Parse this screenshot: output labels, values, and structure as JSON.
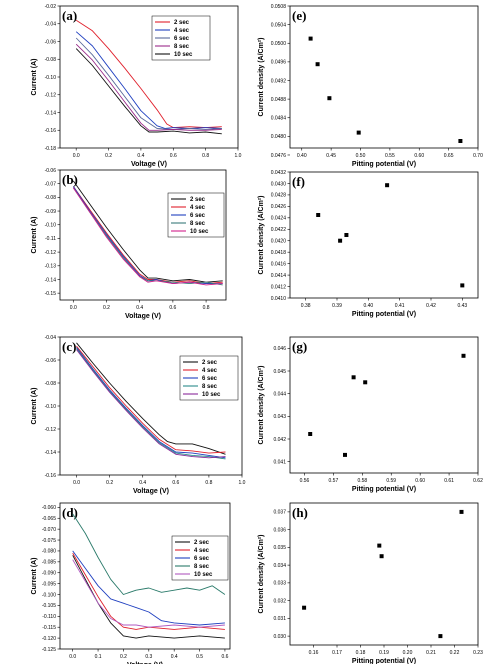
{
  "chart_data": [
    {
      "id": "a",
      "type": "line",
      "panel_label": "(a)",
      "xlabel": "Voltage (V)",
      "ylabel": "Current (A)",
      "xlim": [
        -0.1,
        1.0
      ],
      "ylim": [
        -0.18,
        -0.02
      ],
      "xticks": [
        "0.0",
        "0.2",
        "0.4",
        "0.6",
        "0.8",
        "1.0"
      ],
      "yticks": [
        "-0.02",
        "-0.04",
        "-0.06",
        "-0.08",
        "-0.10",
        "-0.12",
        "-0.14",
        "-0.16",
        "-0.18"
      ],
      "legend": "top-right",
      "series": [
        {
          "name": "2 sec",
          "color": "#e0202c",
          "x": [
            0,
            0.1,
            0.2,
            0.3,
            0.4,
            0.5,
            0.56,
            0.6,
            0.7,
            0.8,
            0.9
          ],
          "y": [
            -0.036,
            -0.048,
            -0.068,
            -0.09,
            -0.113,
            -0.137,
            -0.153,
            -0.157,
            -0.156,
            -0.157,
            -0.156
          ]
        },
        {
          "name": "4 sec",
          "color": "#2040c0",
          "x": [
            0,
            0.1,
            0.2,
            0.3,
            0.4,
            0.5,
            0.55,
            0.6,
            0.7,
            0.8,
            0.9
          ],
          "y": [
            -0.049,
            -0.065,
            -0.089,
            -0.113,
            -0.138,
            -0.155,
            -0.158,
            -0.157,
            -0.158,
            -0.157,
            -0.158
          ]
        },
        {
          "name": "6 sec",
          "color": "#5a6a9a",
          "x": [
            0,
            0.1,
            0.2,
            0.3,
            0.4,
            0.5,
            0.6,
            0.7,
            0.8,
            0.9
          ],
          "y": [
            -0.056,
            -0.075,
            -0.098,
            -0.122,
            -0.146,
            -0.158,
            -0.159,
            -0.158,
            -0.159,
            -0.158
          ]
        },
        {
          "name": "8 sec",
          "color": "#9a2a8a",
          "x": [
            0,
            0.1,
            0.2,
            0.3,
            0.4,
            0.45,
            0.5,
            0.6,
            0.7,
            0.8,
            0.9
          ],
          "y": [
            -0.063,
            -0.081,
            -0.104,
            -0.128,
            -0.152,
            -0.16,
            -0.16,
            -0.159,
            -0.16,
            -0.16,
            -0.159
          ]
        },
        {
          "name": "10 sec",
          "color": "#111111",
          "x": [
            0,
            0.1,
            0.2,
            0.3,
            0.4,
            0.45,
            0.5,
            0.6,
            0.7,
            0.8,
            0.9
          ],
          "y": [
            -0.068,
            -0.087,
            -0.11,
            -0.133,
            -0.155,
            -0.162,
            -0.162,
            -0.161,
            -0.163,
            -0.162,
            -0.164
          ]
        }
      ]
    },
    {
      "id": "e",
      "type": "scatter",
      "panel_label": "(e)",
      "xlabel": "Pitting potential (V)",
      "ylabel": "Current density (A/Cm²)",
      "xlim": [
        0.38,
        0.7
      ],
      "ylim": [
        0.04775,
        0.0508
      ],
      "xticks": [
        "0.40",
        "0.45",
        "0.50",
        "0.55",
        "0.60",
        "0.65",
        "0.70"
      ],
      "yticks": [
        "0.0508",
        "0.0504",
        "0.0500",
        "0.0496",
        "0.0492",
        "0.0488",
        "0.0484",
        "0.0480",
        "0.0476"
      ],
      "series": [
        {
          "x": [
            0.415,
            0.427,
            0.447,
            0.497,
            0.67
          ],
          "y": [
            0.0501,
            0.04955,
            0.04882,
            0.04808,
            0.0479
          ]
        }
      ]
    },
    {
      "id": "b",
      "type": "line",
      "panel_label": "(b)",
      "xlabel": "Voltage (V)",
      "ylabel": "Current (A)",
      "xlim": [
        -0.08,
        0.92
      ],
      "ylim": [
        -0.155,
        -0.06
      ],
      "xticks": [
        "0.0",
        "0.2",
        "0.4",
        "0.6",
        "0.8"
      ],
      "yticks": [
        "-0.06",
        "-0.07",
        "-0.08",
        "-0.09",
        "-0.10",
        "-0.11",
        "-0.12",
        "-0.13",
        "-0.14",
        "-0.15"
      ],
      "legend": "right",
      "series": [
        {
          "name": "2 sec",
          "color": "#111111",
          "x": [
            0,
            0.1,
            0.2,
            0.3,
            0.4,
            0.45,
            0.5,
            0.6,
            0.7,
            0.8,
            0.9
          ],
          "y": [
            -0.068,
            -0.085,
            -0.102,
            -0.118,
            -0.133,
            -0.139,
            -0.139,
            -0.141,
            -0.14,
            -0.142,
            -0.141
          ]
        },
        {
          "name": "4 sec",
          "color": "#e0202c",
          "x": [
            0,
            0.1,
            0.2,
            0.3,
            0.4,
            0.45,
            0.5,
            0.6,
            0.7,
            0.8,
            0.9
          ],
          "y": [
            -0.072,
            -0.089,
            -0.106,
            -0.122,
            -0.136,
            -0.14,
            -0.14,
            -0.142,
            -0.141,
            -0.143,
            -0.142
          ]
        },
        {
          "name": "6 sec",
          "color": "#2040c0",
          "x": [
            0,
            0.1,
            0.2,
            0.3,
            0.4,
            0.45,
            0.5,
            0.6,
            0.7,
            0.8,
            0.9
          ],
          "y": [
            -0.072,
            -0.09,
            -0.107,
            -0.123,
            -0.137,
            -0.141,
            -0.14,
            -0.143,
            -0.142,
            -0.143,
            -0.143
          ]
        },
        {
          "name": "8 sec",
          "color": "#3a7a7a",
          "x": [
            0,
            0.1,
            0.2,
            0.3,
            0.4,
            0.45,
            0.5,
            0.6,
            0.7,
            0.8,
            0.9
          ],
          "y": [
            -0.073,
            -0.091,
            -0.108,
            -0.124,
            -0.138,
            -0.141,
            -0.141,
            -0.142,
            -0.143,
            -0.142,
            -0.144
          ]
        },
        {
          "name": "10 sec",
          "color": "#d0208a",
          "x": [
            0,
            0.1,
            0.2,
            0.3,
            0.4,
            0.45,
            0.5,
            0.6,
            0.7,
            0.8,
            0.9
          ],
          "y": [
            -0.073,
            -0.091,
            -0.109,
            -0.125,
            -0.138,
            -0.142,
            -0.141,
            -0.143,
            -0.142,
            -0.144,
            -0.143
          ]
        }
      ]
    },
    {
      "id": "f",
      "type": "scatter",
      "panel_label": "(f)",
      "xlabel": "Pitting potential (V)",
      "ylabel": "Current density (A/Cm²)",
      "xlim": [
        0.375,
        0.435
      ],
      "ylim": [
        0.041,
        0.0432
      ],
      "xticks": [
        "0.38",
        "0.39",
        "0.40",
        "0.41",
        "0.42",
        "0.43"
      ],
      "yticks": [
        "0.0432",
        "0.0430",
        "0.0428",
        "0.0426",
        "0.0424",
        "0.0422",
        "0.0420",
        "0.0418",
        "0.0416",
        "0.0414",
        "0.0412",
        "0.0410"
      ],
      "series": [
        {
          "x": [
            0.384,
            0.391,
            0.393,
            0.406,
            0.43
          ],
          "y": [
            0.04245,
            0.042,
            0.0421,
            0.04297,
            0.04122
          ]
        }
      ]
    },
    {
      "id": "c",
      "type": "line",
      "panel_label": "(c)",
      "xlabel": "Voltage (V)",
      "ylabel": "Current (A)",
      "xlim": [
        -0.1,
        1.0
      ],
      "ylim": [
        -0.16,
        -0.04
      ],
      "xticks": [
        "0.0",
        "0.2",
        "0.4",
        "0.6",
        "0.8",
        "1.0"
      ],
      "yticks": [
        "-0.04",
        "-0.06",
        "-0.08",
        "-0.10",
        "-0.12",
        "-0.14",
        "-0.16"
      ],
      "legend": "right",
      "series": [
        {
          "name": "2 sec",
          "color": "#111111",
          "x": [
            0,
            0.1,
            0.2,
            0.3,
            0.4,
            0.5,
            0.55,
            0.6,
            0.7,
            0.8,
            0.9
          ],
          "y": [
            -0.045,
            -0.063,
            -0.08,
            -0.096,
            -0.111,
            -0.125,
            -0.131,
            -0.133,
            -0.133,
            -0.137,
            -0.142
          ]
        },
        {
          "name": "4 sec",
          "color": "#e0202c",
          "x": [
            0,
            0.1,
            0.2,
            0.3,
            0.4,
            0.5,
            0.6,
            0.7,
            0.8,
            0.9
          ],
          "y": [
            -0.048,
            -0.066,
            -0.084,
            -0.1,
            -0.115,
            -0.129,
            -0.138,
            -0.139,
            -0.141,
            -0.14
          ]
        },
        {
          "name": "6 sec",
          "color": "#2040c0",
          "x": [
            0,
            0.1,
            0.2,
            0.3,
            0.4,
            0.5,
            0.6,
            0.7,
            0.8,
            0.9
          ],
          "y": [
            -0.049,
            -0.068,
            -0.086,
            -0.102,
            -0.117,
            -0.131,
            -0.14,
            -0.141,
            -0.143,
            -0.145
          ]
        },
        {
          "name": "8 sec",
          "color": "#2a8a8a",
          "x": [
            0,
            0.1,
            0.2,
            0.3,
            0.4,
            0.5,
            0.6,
            0.7,
            0.8,
            0.9
          ],
          "y": [
            -0.05,
            -0.069,
            -0.087,
            -0.103,
            -0.118,
            -0.132,
            -0.141,
            -0.143,
            -0.144,
            -0.146
          ]
        },
        {
          "name": "10 sec",
          "color": "#8a2a9a",
          "x": [
            0,
            0.1,
            0.2,
            0.3,
            0.4,
            0.5,
            0.6,
            0.7,
            0.8,
            0.9
          ],
          "y": [
            -0.051,
            -0.07,
            -0.088,
            -0.104,
            -0.119,
            -0.133,
            -0.142,
            -0.144,
            -0.145,
            -0.144
          ]
        }
      ]
    },
    {
      "id": "g",
      "type": "scatter",
      "panel_label": "(g)",
      "xlabel": "Pitting potential (V)",
      "ylabel": "Current density (A/Cm²)",
      "xlim": [
        0.555,
        0.62
      ],
      "ylim": [
        0.0405,
        0.0465
      ],
      "xticks": [
        "0.56",
        "0.57",
        "0.58",
        "0.59",
        "0.60",
        "0.61",
        "0.62"
      ],
      "yticks": [
        "0.046",
        "0.045",
        "0.044",
        "0.043",
        "0.042",
        "0.041"
      ],
      "series": [
        {
          "x": [
            0.562,
            0.574,
            0.577,
            0.581,
            0.615
          ],
          "y": [
            0.04222,
            0.0413,
            0.04472,
            0.0445,
            0.04567
          ]
        }
      ]
    },
    {
      "id": "d",
      "type": "line",
      "panel_label": "(d)",
      "xlabel": "Voltage (V)",
      "ylabel": "Current (A)",
      "xlim": [
        -0.05,
        0.62
      ],
      "ylim": [
        -0.125,
        -0.058
      ],
      "xticks": [
        "0.0",
        "0.1",
        "0.2",
        "0.3",
        "0.4",
        "0.5",
        "0.6"
      ],
      "yticks": [
        "-0.060",
        "-0.065",
        "-0.070",
        "-0.075",
        "-0.080",
        "-0.085",
        "-0.090",
        "-0.095",
        "-0.100",
        "-0.105",
        "-0.110",
        "-0.115",
        "-0.120",
        "-0.125"
      ],
      "legend": "right",
      "series": [
        {
          "name": "2 sec",
          "color": "#111111",
          "x": [
            0,
            0.05,
            0.1,
            0.15,
            0.2,
            0.25,
            0.3,
            0.4,
            0.5,
            0.6
          ],
          "y": [
            -0.082,
            -0.093,
            -0.104,
            -0.113,
            -0.119,
            -0.12,
            -0.119,
            -0.12,
            -0.119,
            -0.12
          ]
        },
        {
          "name": "4 sec",
          "color": "#e0202c",
          "x": [
            0,
            0.05,
            0.1,
            0.15,
            0.2,
            0.25,
            0.3,
            0.4,
            0.5,
            0.6
          ],
          "y": [
            -0.081,
            -0.091,
            -0.101,
            -0.11,
            -0.115,
            -0.116,
            -0.115,
            -0.116,
            -0.115,
            -0.116
          ]
        },
        {
          "name": "6 sec",
          "color": "#2040c0",
          "x": [
            0,
            0.05,
            0.1,
            0.15,
            0.2,
            0.25,
            0.3,
            0.35,
            0.4,
            0.5,
            0.6
          ],
          "y": [
            -0.08,
            -0.088,
            -0.096,
            -0.102,
            -0.104,
            -0.106,
            -0.108,
            -0.112,
            -0.113,
            -0.114,
            -0.113
          ]
        },
        {
          "name": "8 sec",
          "color": "#2a7a6a",
          "x": [
            0,
            0.05,
            0.1,
            0.15,
            0.2,
            0.25,
            0.3,
            0.35,
            0.4,
            0.45,
            0.5,
            0.55,
            0.6
          ],
          "y": [
            -0.063,
            -0.072,
            -0.083,
            -0.093,
            -0.1,
            -0.098,
            -0.097,
            -0.099,
            -0.098,
            -0.097,
            -0.098,
            -0.096,
            -0.1
          ]
        },
        {
          "name": "10 sec",
          "color": "#b05ac0",
          "x": [
            0,
            0.05,
            0.1,
            0.15,
            0.2,
            0.25,
            0.3,
            0.4,
            0.5,
            0.6
          ],
          "y": [
            -0.084,
            -0.094,
            -0.104,
            -0.111,
            -0.114,
            -0.114,
            -0.115,
            -0.114,
            -0.115,
            -0.114
          ]
        }
      ]
    },
    {
      "id": "h",
      "type": "scatter",
      "panel_label": "(h)",
      "xlabel": "Pitting potential (V)",
      "ylabel": "Current density (A/Cm²)",
      "xlim": [
        0.15,
        0.23
      ],
      "ylim": [
        0.0295,
        0.0375
      ],
      "xticks": [
        "0.16",
        "0.17",
        "0.18",
        "0.19",
        "0.20",
        "0.21",
        "0.22",
        "0.23"
      ],
      "yticks": [
        "0.037",
        "0.036",
        "0.035",
        "0.034",
        "0.033",
        "0.032",
        "0.031",
        "0.030"
      ],
      "series": [
        {
          "x": [
            0.156,
            0.188,
            0.189,
            0.214,
            0.223
          ],
          "y": [
            0.0316,
            0.0351,
            0.0345,
            0.03,
            0.037
          ]
        }
      ]
    }
  ]
}
